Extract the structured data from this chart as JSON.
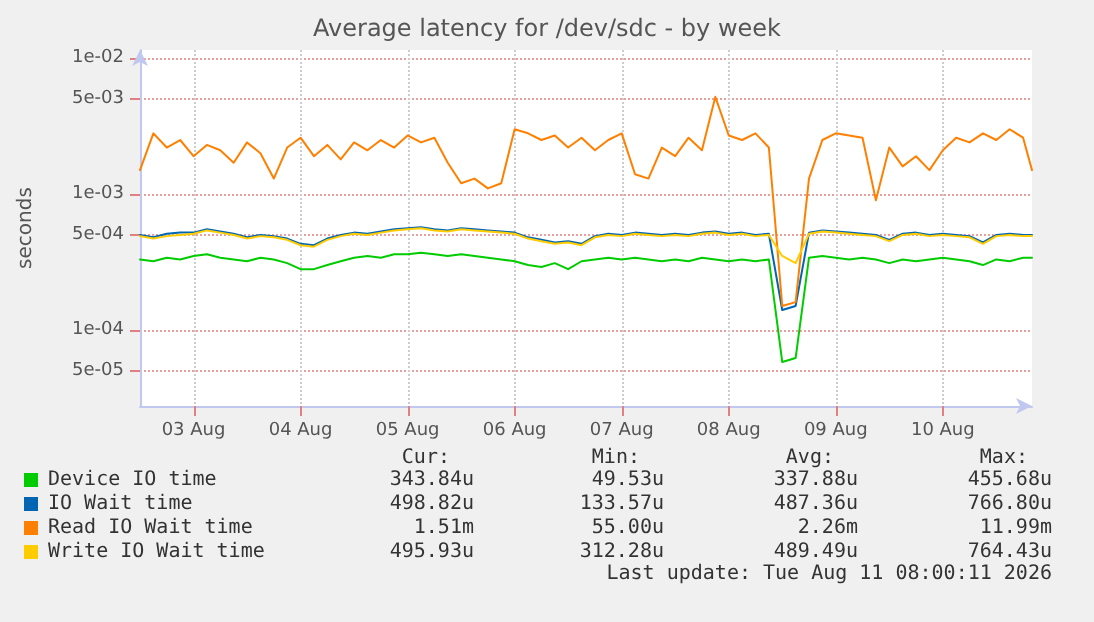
{
  "chart_data": {
    "type": "line",
    "title": "Average latency for /dev/sdc - by week",
    "ylabel": "seconds",
    "log": "y",
    "grid": true,
    "legend": "bottom",
    "marker": "none",
    "line_style": "solid",
    "ylim": [
      2.75e-05,
      0.0115
    ],
    "yticks": [
      {
        "value": 0.01,
        "label": "1e-02"
      },
      {
        "value": 0.005,
        "label": "5e-03"
      },
      {
        "value": 0.001,
        "label": "1e-03"
      },
      {
        "value": 0.0005,
        "label": "5e-04"
      },
      {
        "value": 0.0001,
        "label": "1e-04"
      },
      {
        "value": 5e-05,
        "label": "5e-05"
      }
    ],
    "xlim": [
      "2026-08-03T00:00",
      "2026-08-11T08:00"
    ],
    "xticks": [
      {
        "value": "2026-08-03T12:00",
        "label": "03 Aug"
      },
      {
        "value": "2026-08-04T12:00",
        "label": "04 Aug"
      },
      {
        "value": "2026-08-05T12:00",
        "label": "05 Aug"
      },
      {
        "value": "2026-08-06T12:00",
        "label": "06 Aug"
      },
      {
        "value": "2026-08-07T12:00",
        "label": "07 Aug"
      },
      {
        "value": "2026-08-08T12:00",
        "label": "08 Aug"
      },
      {
        "value": "2026-08-09T12:00",
        "label": "09 Aug"
      },
      {
        "value": "2026-08-10T12:00",
        "label": "10 Aug"
      }
    ],
    "x": [
      "2026-08-03T00:00",
      "2026-08-03T03:00",
      "2026-08-03T06:00",
      "2026-08-03T09:00",
      "2026-08-03T12:00",
      "2026-08-03T15:00",
      "2026-08-03T18:00",
      "2026-08-03T21:00",
      "2026-08-04T00:00",
      "2026-08-04T03:00",
      "2026-08-04T06:00",
      "2026-08-04T09:00",
      "2026-08-04T12:00",
      "2026-08-04T15:00",
      "2026-08-04T18:00",
      "2026-08-04T21:00",
      "2026-08-05T00:00",
      "2026-08-05T03:00",
      "2026-08-05T06:00",
      "2026-08-05T09:00",
      "2026-08-05T12:00",
      "2026-08-05T15:00",
      "2026-08-05T18:00",
      "2026-08-05T21:00",
      "2026-08-06T00:00",
      "2026-08-06T03:00",
      "2026-08-06T06:00",
      "2026-08-06T09:00",
      "2026-08-06T12:00",
      "2026-08-06T15:00",
      "2026-08-06T18:00",
      "2026-08-06T21:00",
      "2026-08-07T00:00",
      "2026-08-07T03:00",
      "2026-08-07T06:00",
      "2026-08-07T09:00",
      "2026-08-07T12:00",
      "2026-08-07T15:00",
      "2026-08-07T18:00",
      "2026-08-07T21:00",
      "2026-08-08T00:00",
      "2026-08-08T03:00",
      "2026-08-08T06:00",
      "2026-08-08T09:00",
      "2026-08-08T12:00",
      "2026-08-08T15:00",
      "2026-08-08T18:00",
      "2026-08-08T21:00",
      "2026-08-09T00:00",
      "2026-08-09T03:00",
      "2026-08-09T06:00",
      "2026-08-09T09:00",
      "2026-08-09T12:00",
      "2026-08-09T15:00",
      "2026-08-09T18:00",
      "2026-08-09T21:00",
      "2026-08-10T00:00",
      "2026-08-10T03:00",
      "2026-08-10T06:00",
      "2026-08-10T09:00",
      "2026-08-10T12:00",
      "2026-08-10T15:00",
      "2026-08-10T18:00",
      "2026-08-10T21:00",
      "2026-08-11T00:00",
      "2026-08-11T03:00",
      "2026-08-11T06:00",
      "2026-08-11T08:00"
    ],
    "series": [
      {
        "name": "Device IO time",
        "color": "#00cc00",
        "values": [
          0.00033,
          0.00032,
          0.00034,
          0.00033,
          0.00035,
          0.00036,
          0.00034,
          0.00033,
          0.00032,
          0.00034,
          0.00033,
          0.00031,
          0.00028,
          0.00028,
          0.0003,
          0.00032,
          0.00034,
          0.00035,
          0.00034,
          0.00036,
          0.00036,
          0.00037,
          0.00036,
          0.00035,
          0.00036,
          0.00035,
          0.00034,
          0.00033,
          0.00032,
          0.0003,
          0.00029,
          0.00031,
          0.00028,
          0.00032,
          0.00033,
          0.00034,
          0.00033,
          0.00034,
          0.00033,
          0.00032,
          0.00033,
          0.00032,
          0.00034,
          0.00033,
          0.00032,
          0.00033,
          0.00032,
          0.00033,
          5.8e-05,
          6.2e-05,
          0.00034,
          0.00035,
          0.00034,
          0.00033,
          0.00034,
          0.00033,
          0.00031,
          0.00033,
          0.00032,
          0.00033,
          0.00034,
          0.00033,
          0.00032,
          0.0003,
          0.00033,
          0.00032,
          0.00034,
          0.00034
        ]
      },
      {
        "name": "IO Wait time",
        "color": "#0066b3",
        "values": [
          0.0005,
          0.00048,
          0.00051,
          0.00052,
          0.00052,
          0.00055,
          0.00053,
          0.00051,
          0.00048,
          0.0005,
          0.00049,
          0.00047,
          0.00043,
          0.00042,
          0.00047,
          0.0005,
          0.00052,
          0.00051,
          0.00053,
          0.00055,
          0.00056,
          0.00057,
          0.00055,
          0.00054,
          0.00056,
          0.00055,
          0.00054,
          0.00053,
          0.00052,
          0.00048,
          0.00046,
          0.00044,
          0.00045,
          0.00043,
          0.00049,
          0.00051,
          0.0005,
          0.00052,
          0.00051,
          0.0005,
          0.00051,
          0.0005,
          0.00052,
          0.00053,
          0.00051,
          0.00052,
          0.0005,
          0.00051,
          0.00014,
          0.00015,
          0.00052,
          0.00054,
          0.00053,
          0.00052,
          0.00051,
          0.0005,
          0.00046,
          0.00051,
          0.00052,
          0.0005,
          0.00051,
          0.0005,
          0.00049,
          0.00044,
          0.0005,
          0.00051,
          0.0005,
          0.0005
        ]
      },
      {
        "name": "Read IO Wait time",
        "color": "#ff8000",
        "values": [
          0.0015,
          0.0028,
          0.0022,
          0.0025,
          0.0019,
          0.0023,
          0.0021,
          0.0017,
          0.0024,
          0.002,
          0.0013,
          0.0022,
          0.0026,
          0.0019,
          0.0023,
          0.0018,
          0.0024,
          0.0021,
          0.0025,
          0.0022,
          0.0027,
          0.0024,
          0.0026,
          0.0017,
          0.0012,
          0.0013,
          0.0011,
          0.0012,
          0.003,
          0.0028,
          0.0025,
          0.0027,
          0.0022,
          0.0026,
          0.0021,
          0.0025,
          0.0028,
          0.0014,
          0.0013,
          0.0022,
          0.0019,
          0.0026,
          0.0021,
          0.0052,
          0.0027,
          0.0025,
          0.0028,
          0.0022,
          0.00015,
          0.00016,
          0.0013,
          0.0025,
          0.0028,
          0.0027,
          0.0026,
          0.0009,
          0.0022,
          0.0016,
          0.0019,
          0.0015,
          0.0021,
          0.0026,
          0.0024,
          0.0028,
          0.0025,
          0.003,
          0.0026,
          0.0015
        ]
      },
      {
        "name": "Write IO Wait time",
        "color": "#ffcc00",
        "values": [
          0.00049,
          0.00047,
          0.00049,
          0.0005,
          0.00051,
          0.00054,
          0.00052,
          0.0005,
          0.00047,
          0.00049,
          0.00048,
          0.00046,
          0.00042,
          0.00041,
          0.00046,
          0.00049,
          0.00051,
          0.0005,
          0.00052,
          0.00054,
          0.00055,
          0.00056,
          0.00054,
          0.00053,
          0.00055,
          0.00054,
          0.00053,
          0.00052,
          0.00051,
          0.00047,
          0.00045,
          0.00043,
          0.00044,
          0.00042,
          0.00048,
          0.0005,
          0.00049,
          0.00051,
          0.0005,
          0.00049,
          0.0005,
          0.00049,
          0.00051,
          0.00052,
          0.0005,
          0.00051,
          0.00049,
          0.0005,
          0.00035,
          0.00031,
          0.00051,
          0.00053,
          0.00052,
          0.00051,
          0.0005,
          0.00049,
          0.00045,
          0.0005,
          0.00051,
          0.00049,
          0.0005,
          0.00049,
          0.00048,
          0.00043,
          0.00049,
          0.0005,
          0.00049,
          0.00049
        ]
      }
    ],
    "annotations": [
      "Cur:",
      "Min:",
      "Avg:",
      "Max:",
      "343.84u",
      "49.53u",
      "337.88u",
      "455.68u",
      "498.82u",
      "133.57u",
      "487.36u",
      "766.80u",
      "1.51m",
      "55.00u",
      "2.26m",
      "11.99m",
      "495.93u",
      "312.28u",
      "489.49u",
      "764.43u",
      "Last update: Tue Aug 11 08:00:11 2026"
    ]
  }
}
